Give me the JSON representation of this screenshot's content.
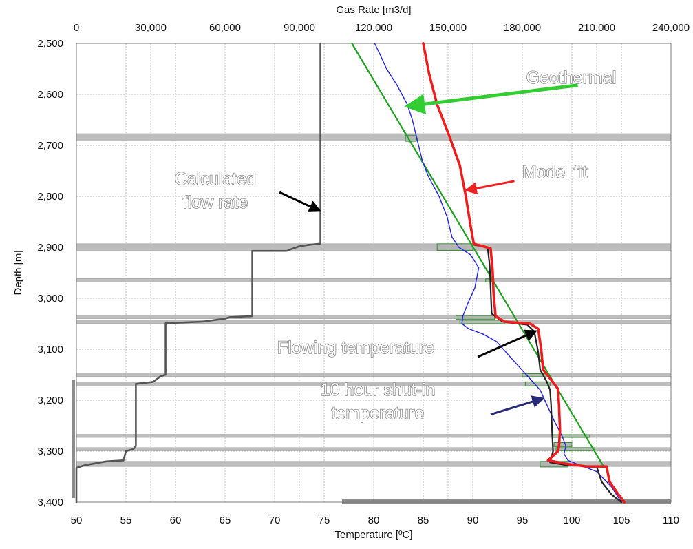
{
  "chart_data": {
    "type": "line",
    "top_axis": {
      "label": "Gas Rate [m3/d]",
      "range": [
        0,
        240000
      ],
      "ticks": [
        "0",
        "30,000",
        "60,000",
        "90,000",
        "120,000",
        "150,000",
        "180,000",
        "210,000",
        "240,000"
      ],
      "tick_values": [
        0,
        30000,
        60000,
        90000,
        120000,
        150000,
        180000,
        210000,
        240000
      ]
    },
    "bottom_axis": {
      "label": "Temperature [ºC]",
      "range": [
        50,
        110
      ],
      "ticks": [
        "50",
        "55",
        "60",
        "65",
        "70",
        "75",
        "80",
        "85",
        "90",
        "95",
        "100",
        "105",
        "110"
      ],
      "tick_values": [
        50,
        55,
        60,
        65,
        70,
        75,
        80,
        85,
        90,
        95,
        100,
        105,
        110
      ]
    },
    "y_axis": {
      "label": "Depth [m]",
      "range": [
        2500,
        3400
      ],
      "inverted": true,
      "ticks": [
        "2,500",
        "2,600",
        "2,700",
        "2,800",
        "2,900",
        "3,000",
        "3,100",
        "3,200",
        "3,300",
        "3,400"
      ],
      "tick_values": [
        2500,
        2600,
        2700,
        2800,
        2900,
        3000,
        3100,
        3200,
        3300,
        3400
      ]
    },
    "grid": true,
    "series": [
      {
        "name": "Calculated flow rate",
        "axis": "gas_rate",
        "color": "#555555",
        "points": [
          [
            98500,
            2500
          ],
          [
            98500,
            2893
          ],
          [
            94000,
            2895
          ],
          [
            90000,
            2898
          ],
          [
            87000,
            2903
          ],
          [
            85000,
            2907
          ],
          [
            71000,
            2907
          ],
          [
            71000,
            3035
          ],
          [
            62000,
            3037
          ],
          [
            60000,
            3040
          ],
          [
            51000,
            3046
          ],
          [
            36000,
            3049
          ],
          [
            36000,
            3150
          ],
          [
            34000,
            3153
          ],
          [
            31000,
            3164
          ],
          [
            24000,
            3168
          ],
          [
            24000,
            3290
          ],
          [
            23000,
            3296
          ],
          [
            20000,
            3300
          ],
          [
            19000,
            3318
          ],
          [
            12000,
            3320
          ],
          [
            3000,
            3328
          ],
          [
            0,
            3333
          ],
          [
            0,
            3400
          ]
        ]
      },
      {
        "name": "Geothermal",
        "axis": "temperature",
        "color": "#1fa01f",
        "points": [
          [
            77.8,
            2500
          ],
          [
            103.2,
            3330
          ]
        ]
      },
      {
        "name": "10 hour shut-in temperature",
        "axis": "temperature",
        "color": "#2222dd",
        "points": [
          [
            80.1,
            2500
          ],
          [
            80.6,
            2520
          ],
          [
            81.3,
            2550
          ],
          [
            82.3,
            2580
          ],
          [
            83.4,
            2620
          ],
          [
            83.9,
            2650
          ],
          [
            84.4,
            2690
          ],
          [
            84.9,
            2730
          ],
          [
            85.5,
            2760
          ],
          [
            86.6,
            2800
          ],
          [
            87.4,
            2840
          ],
          [
            87.9,
            2880
          ],
          [
            88.6,
            2900
          ],
          [
            89.8,
            2915
          ],
          [
            90.6,
            2940
          ],
          [
            90.2,
            2980
          ],
          [
            89.5,
            3010
          ],
          [
            89.0,
            3035
          ],
          [
            88.9,
            3050
          ],
          [
            89.6,
            3060
          ],
          [
            91.0,
            3070
          ],
          [
            92.4,
            3085
          ],
          [
            94.0,
            3120
          ],
          [
            95.4,
            3150
          ],
          [
            96.8,
            3180
          ],
          [
            97.5,
            3210
          ],
          [
            98.2,
            3240
          ],
          [
            99.0,
            3270
          ],
          [
            99.4,
            3290
          ],
          [
            99.2,
            3305
          ],
          [
            99.6,
            3318
          ],
          [
            100.5,
            3325
          ],
          [
            102.5,
            3340
          ],
          [
            104.0,
            3370
          ],
          [
            105.0,
            3400
          ]
        ]
      },
      {
        "name": "Flowing temperature",
        "axis": "temperature",
        "color": "#222222",
        "points": [
          [
            85.0,
            2500
          ],
          [
            85.6,
            2560
          ],
          [
            86.4,
            2620
          ],
          [
            87.6,
            2680
          ],
          [
            88.7,
            2740
          ],
          [
            89.3,
            2800
          ],
          [
            89.8,
            2860
          ],
          [
            90.1,
            2895
          ],
          [
            91.5,
            2900
          ],
          [
            91.7,
            2935
          ],
          [
            91.8,
            2980
          ],
          [
            91.9,
            3030
          ],
          [
            93.0,
            3046
          ],
          [
            95.5,
            3052
          ],
          [
            96.2,
            3065
          ],
          [
            96.6,
            3105
          ],
          [
            96.8,
            3140
          ],
          [
            97.5,
            3165
          ],
          [
            97.8,
            3180
          ],
          [
            97.9,
            3210
          ],
          [
            98.0,
            3260
          ],
          [
            98.1,
            3300
          ],
          [
            97.8,
            3322
          ],
          [
            99.6,
            3328
          ],
          [
            102.5,
            3330
          ],
          [
            103.0,
            3360
          ],
          [
            104.0,
            3385
          ],
          [
            105.0,
            3400
          ]
        ]
      },
      {
        "name": "Model fit",
        "axis": "temperature",
        "color": "#ee1c1c",
        "points": [
          [
            85.0,
            2500
          ],
          [
            85.6,
            2560
          ],
          [
            86.4,
            2620
          ],
          [
            87.6,
            2680
          ],
          [
            88.7,
            2740
          ],
          [
            89.3,
            2800
          ],
          [
            89.8,
            2860
          ],
          [
            90.1,
            2893
          ],
          [
            91.8,
            2902
          ],
          [
            92.0,
            2945
          ],
          [
            92.1,
            2990
          ],
          [
            92.3,
            3035
          ],
          [
            93.2,
            3046
          ],
          [
            95.8,
            3050
          ],
          [
            96.6,
            3060
          ],
          [
            96.9,
            3100
          ],
          [
            97.1,
            3140
          ],
          [
            97.9,
            3160
          ],
          [
            98.3,
            3170
          ],
          [
            98.6,
            3178
          ],
          [
            98.7,
            3210
          ],
          [
            98.8,
            3260
          ],
          [
            98.7,
            3290
          ],
          [
            98.6,
            3300
          ],
          [
            97.6,
            3318
          ],
          [
            99.5,
            3325
          ],
          [
            101.5,
            3330
          ],
          [
            103.5,
            3330
          ],
          [
            103.8,
            3360
          ],
          [
            104.7,
            3385
          ],
          [
            105.3,
            3400
          ]
        ]
      }
    ],
    "zone_markers": [
      {
        "depth_top": 2677,
        "depth_bottom": 2691
      },
      {
        "depth_top": 2893,
        "depth_bottom": 2906
      },
      {
        "depth_top": 2961,
        "depth_bottom": 2968
      },
      {
        "depth_top": 3033,
        "depth_bottom": 3040
      },
      {
        "depth_top": 3043,
        "depth_bottom": 3050
      },
      {
        "depth_top": 3147,
        "depth_bottom": 3154
      },
      {
        "depth_top": 3164,
        "depth_bottom": 3172
      },
      {
        "depth_top": 3267,
        "depth_bottom": 3273
      },
      {
        "depth_top": 3293,
        "depth_bottom": 3299
      },
      {
        "depth_top": 3320,
        "depth_bottom": 3330
      }
    ],
    "deviation_boxes": [
      {
        "t1": 83.2,
        "t2": 84.3,
        "depth_top": 2680,
        "depth_bottom": 2692
      },
      {
        "t1": 86.4,
        "t2": 90.0,
        "depth_top": 2893,
        "depth_bottom": 2906
      },
      {
        "t1": 91.3,
        "t2": 91.9,
        "depth_top": 2962,
        "depth_bottom": 2968
      },
      {
        "t1": 88.3,
        "t2": 92.2,
        "depth_top": 3034,
        "depth_bottom": 3041
      },
      {
        "t1": 88.7,
        "t2": 93.2,
        "depth_top": 3043,
        "depth_bottom": 3050
      },
      {
        "t1": 95.0,
        "t2": 97.4,
        "depth_top": 3148,
        "depth_bottom": 3154
      },
      {
        "t1": 95.3,
        "t2": 97.8,
        "depth_top": 3164,
        "depth_bottom": 3172
      },
      {
        "t1": 98.0,
        "t2": 101.8,
        "depth_top": 3268,
        "depth_bottom": 3273
      },
      {
        "t1": 98.2,
        "t2": 100.0,
        "depth_top": 3283,
        "depth_bottom": 3291
      },
      {
        "t1": 98.4,
        "t2": 102.3,
        "depth_top": 3293,
        "depth_bottom": 3299
      },
      {
        "t1": 96.8,
        "t2": 99.6,
        "depth_top": 3320,
        "depth_bottom": 3331
      }
    ],
    "bars": {
      "left": {
        "depth_top": 3160,
        "depth_bottom": 3392
      },
      "bottom": {
        "t_start": 76.8,
        "t_end": 110
      }
    },
    "annotations": [
      {
        "id": "geothermal",
        "text": "Geothermal",
        "color": "#33cc33",
        "arrow_from": [
          100.6,
          2582
        ],
        "arrow_to": [
          83.5,
          2623
        ]
      },
      {
        "id": "model-fit",
        "text": "Model fit",
        "color": "#ee2222",
        "arrow_from": [
          94.2,
          2770
        ],
        "arrow_to": [
          89.4,
          2788
        ]
      },
      {
        "id": "flow-rate",
        "text": "Calculated\nflow rate",
        "color": "#000000",
        "arrow_from": [
          82000,
          2792
        ],
        "arrow_to": [
          98000,
          2828
        ]
      },
      {
        "id": "flowing-temp",
        "text": "Flowing temperature",
        "color": "#000000",
        "arrow_from": [
          90.5,
          3115
        ],
        "arrow_to": [
          96.3,
          3065
        ]
      },
      {
        "id": "shutin-temp",
        "text": "10 hour shut-in\ntemperature",
        "color": "#2a2a7a",
        "arrow_from": [
          91.8,
          3228
        ],
        "arrow_to": [
          97.0,
          3197
        ]
      }
    ]
  }
}
